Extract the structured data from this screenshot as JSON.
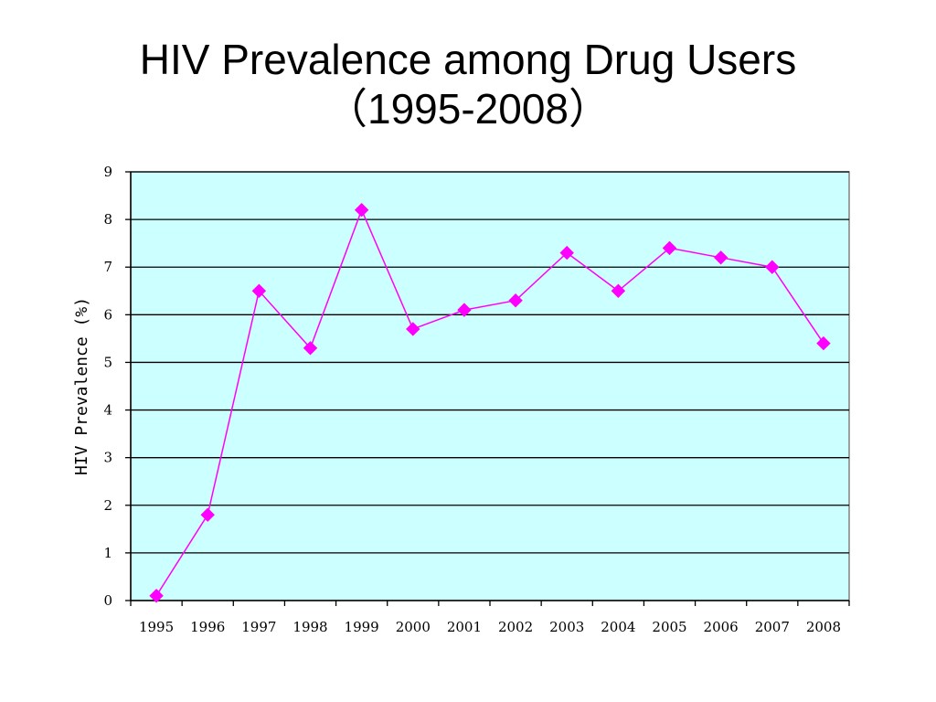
{
  "title_line1": "HIV Prevalence among Drug Users",
  "title_line2": "（1995-2008）",
  "chart_data": {
    "type": "line",
    "x": [
      1995,
      1996,
      1997,
      1998,
      1999,
      2000,
      2001,
      2002,
      2003,
      2004,
      2005,
      2006,
      2007,
      2008
    ],
    "categories": [
      "1995",
      "1996",
      "1997",
      "1998",
      "1999",
      "2000",
      "2001",
      "2002",
      "2003",
      "2004",
      "2005",
      "2006",
      "2007",
      "2008"
    ],
    "series": [
      {
        "values": [
          0.1,
          1.8,
          6.5,
          5.3,
          8.2,
          5.7,
          6.1,
          6.3,
          7.3,
          6.5,
          7.4,
          7.2,
          7.0,
          5.4
        ]
      }
    ],
    "ylabel": "HIV Prevalence (%)",
    "xlabel": "",
    "ylim": [
      0,
      9
    ],
    "yticks": [
      "0",
      "1",
      "2",
      "3",
      "4",
      "5",
      "6",
      "7",
      "8",
      "9"
    ],
    "grid": "horizontal",
    "colors": {
      "plot_background": "#ccffff",
      "line": "#ff00ff",
      "marker": "#ff00ff",
      "gridline": "#000000"
    },
    "marker": "diamond"
  }
}
